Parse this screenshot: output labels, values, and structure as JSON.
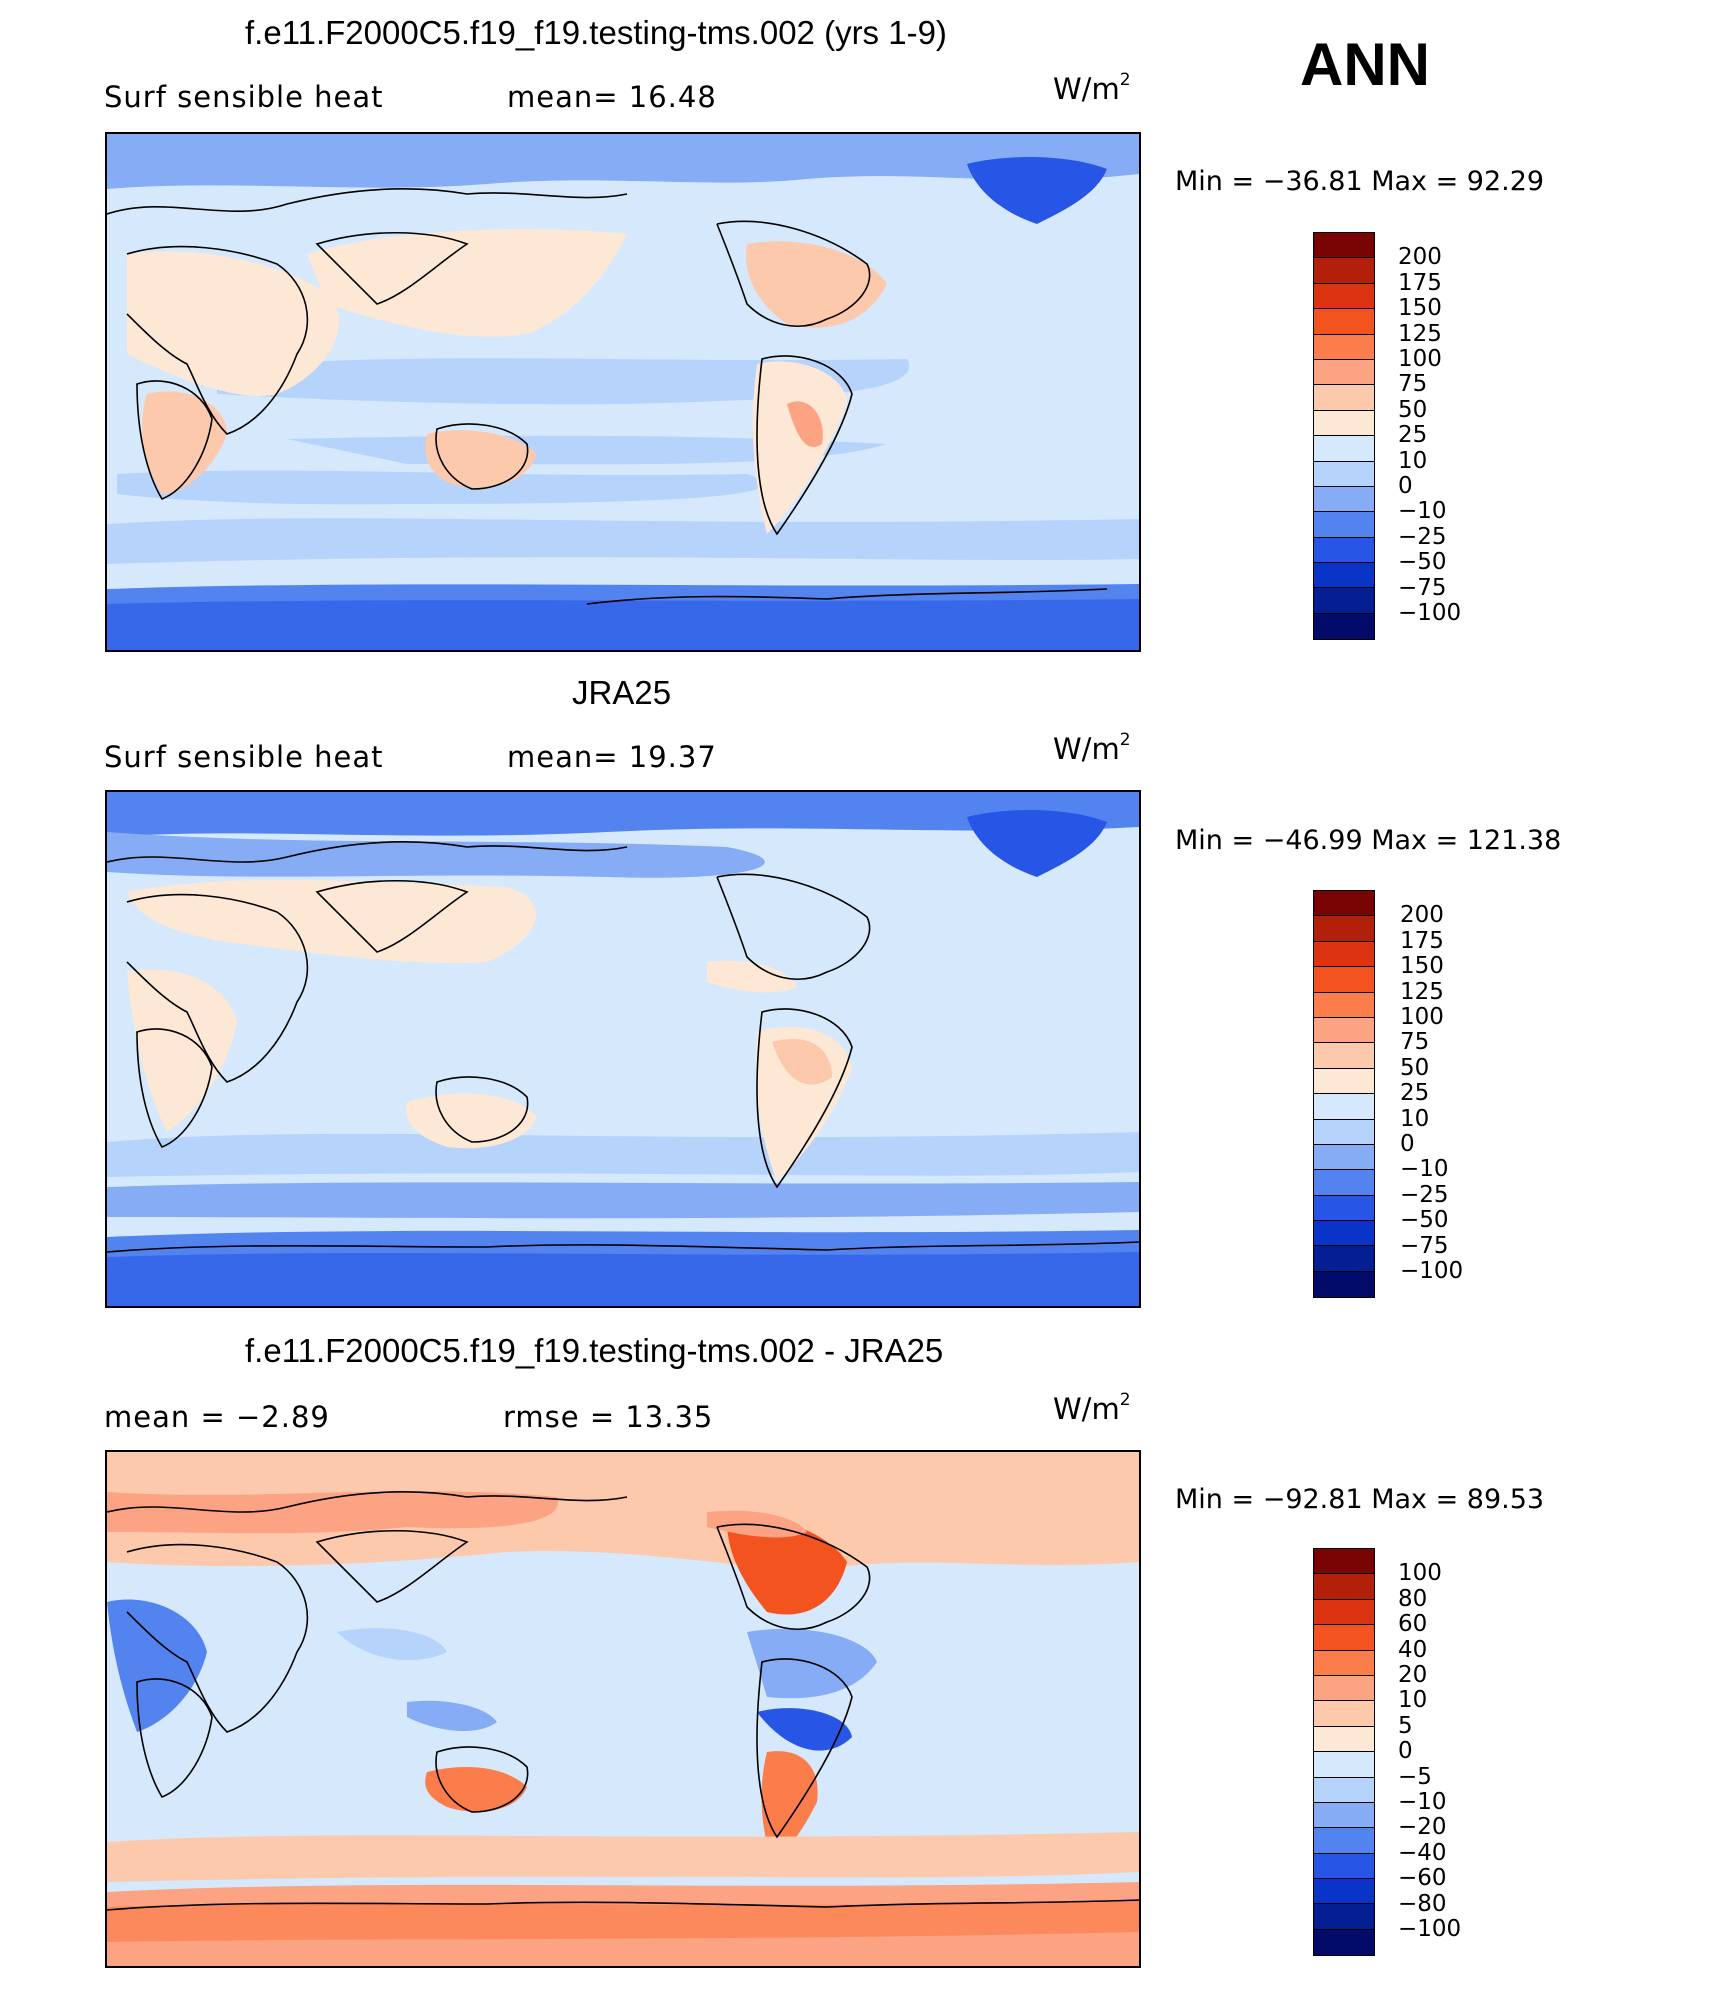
{
  "season": "ANN",
  "panels": [
    {
      "id": "model",
      "title": "f.e11.F2000C5.f19_f19.testing-tms.002 (yrs 1-9)",
      "left_label": "Surf  sensible  heat",
      "center_label": "mean=   16.48",
      "units_base": "W/m",
      "units_sup": "2",
      "minmax": "Min  =  −36.81  Max  =    92.29",
      "colorbar_labels": [
        "200",
        "175",
        "150",
        "125",
        "100",
        "75",
        "50",
        "25",
        "10",
        "0",
        "−10",
        "−25",
        "−50",
        "−75",
        "−100"
      ],
      "colorbar_colors": [
        "#7a0403",
        "#b3200a",
        "#dc3412",
        "#f3541f",
        "#fb7d4b",
        "#fca384",
        "#fdc9ad",
        "#fde8d6",
        "#d6e9fc",
        "#b6d3fb",
        "#86acf6",
        "#5283ef",
        "#2756e6",
        "#0a33c7",
        "#041e94",
        "#020a6a"
      ]
    },
    {
      "id": "obs",
      "title": "JRA25",
      "left_label": "Surf  sensible  heat",
      "center_label": "mean=   19.37",
      "units_base": "W/m",
      "units_sup": "2",
      "minmax": "Min  =  −46.99  Max  =  121.38",
      "colorbar_labels": [
        "200",
        "175",
        "150",
        "125",
        "100",
        "75",
        "50",
        "25",
        "10",
        "0",
        "−10",
        "−25",
        "−50",
        "−75",
        "−100"
      ],
      "colorbar_colors": [
        "#7a0403",
        "#b3200a",
        "#dc3412",
        "#f3541f",
        "#fb7d4b",
        "#fca384",
        "#fdc9ad",
        "#fde8d6",
        "#d6e9fc",
        "#b6d3fb",
        "#86acf6",
        "#5283ef",
        "#2756e6",
        "#0a33c7",
        "#041e94",
        "#020a6a"
      ]
    },
    {
      "id": "diff",
      "title": "f.e11.F2000C5.f19_f19.testing-tms.002 - JRA25",
      "left_label": "mean  =    −2.89",
      "center_label": "rmse  =    13.35",
      "units_base": "W/m",
      "units_sup": "2",
      "minmax": "Min  =  −92.81  Max  =    89.53",
      "colorbar_labels": [
        "100",
        "80",
        "60",
        "40",
        "20",
        "10",
        "5",
        "0",
        "−5",
        "−10",
        "−20",
        "−40",
        "−60",
        "−80",
        "−100"
      ],
      "colorbar_colors": [
        "#7a0403",
        "#b3200a",
        "#dc3412",
        "#f3541f",
        "#fb7d4b",
        "#fca384",
        "#fdc9ad",
        "#fde8d6",
        "#d6e9fc",
        "#b6d3fb",
        "#86acf6",
        "#5283ef",
        "#2756e6",
        "#0a33c7",
        "#041e94",
        "#020a6a"
      ]
    }
  ]
}
